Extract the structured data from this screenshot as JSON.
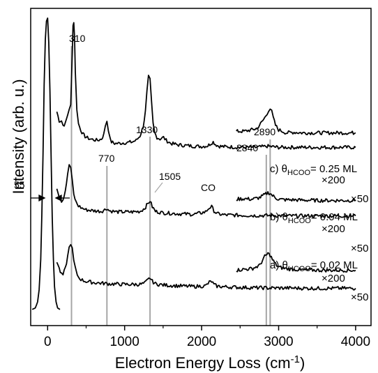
{
  "chart_data": {
    "type": "line",
    "xlabel": "Electron Energy Loss (cm",
    "xlabel_sup": "-1",
    "xlabel_close": ")",
    "ylabel": "Intensity (arb. u.)",
    "xlim": [
      -220,
      4200
    ],
    "ylim": [
      0,
      10
    ],
    "x_ticks": [
      0,
      1000,
      2000,
      3000,
      4000
    ],
    "x_tick_labels": [
      "0",
      "1000",
      "2000",
      "3000",
      "4000"
    ],
    "grid": false,
    "colors": {
      "trace": "#000000",
      "marker_line": "#a6a6a6"
    },
    "peak_markers": [
      {
        "x": 310,
        "label": "310"
      },
      {
        "x": 770,
        "label": "770"
      },
      {
        "x": 1330,
        "label": "1330"
      },
      {
        "x": 2840,
        "label": "2840"
      },
      {
        "x": 2890,
        "label": "2890"
      }
    ],
    "annotations": {
      "p1505": "1505",
      "co": "CO",
      "fwhm": "55"
    },
    "curve_labels": [
      {
        "prefix": "c) ",
        "theta": "θ",
        "sub": "HCOO",
        "suffix": "= 0.25 ML"
      },
      {
        "prefix": "b) ",
        "theta": "θ",
        "sub": "HCOO",
        "suffix": "= 0.04 ML"
      },
      {
        "prefix": "a) ",
        "theta": "θ",
        "sub": "HCOO",
        "suffix": "= 0.02 ML"
      }
    ],
    "multipliers": {
      "x200": "×200",
      "x50": "×50"
    },
    "series": [
      {
        "curve": "c",
        "scale": "×50",
        "baseline": 5.72,
        "x": [
          120,
          150,
          180,
          200,
          230,
          260,
          280,
          300,
          320,
          330,
          340,
          350,
          360,
          380,
          400,
          430,
          460,
          500,
          550,
          600,
          650,
          700,
          730,
          750,
          770,
          790,
          810,
          830,
          870,
          920,
          980,
          1040,
          1100,
          1150,
          1200,
          1240,
          1270,
          1290,
          1310,
          1330,
          1350,
          1370,
          1390,
          1420,
          1460,
          1505,
          1540,
          1600,
          1700,
          1800,
          1900,
          2000,
          2080,
          2120,
          2150,
          2180,
          2220,
          2300,
          2400,
          2500,
          2600,
          2700,
          2800,
          2850,
          2890,
          2920,
          2960,
          3000,
          3100,
          3200,
          3300,
          3500,
          3700,
          4000
        ],
        "y": [
          6.9,
          6.6,
          6.6,
          6.45,
          6.5,
          6.8,
          7.0,
          7.1,
          8.8,
          9.8,
          9.85,
          9.4,
          8.2,
          7.0,
          6.5,
          6.3,
          6.15,
          6.05,
          6.0,
          5.97,
          5.95,
          6.0,
          6.15,
          6.45,
          6.6,
          6.3,
          6.0,
          5.9,
          5.85,
          5.85,
          5.87,
          5.88,
          5.9,
          5.95,
          6.1,
          6.4,
          6.9,
          7.55,
          8.05,
          7.95,
          7.2,
          6.5,
          6.2,
          6.05,
          6.0,
          6.05,
          5.95,
          5.85,
          5.8,
          5.78,
          5.76,
          5.75,
          5.77,
          5.85,
          5.9,
          5.82,
          5.76,
          5.74,
          5.73,
          5.72,
          5.72,
          5.72,
          5.74,
          5.76,
          5.75,
          5.74,
          5.73,
          5.72,
          5.72,
          5.72,
          5.72,
          5.72,
          5.72,
          5.72
        ]
      },
      {
        "curve": "c",
        "scale": "×200",
        "baseline": 5.78,
        "x": [
          2450,
          2550,
          2650,
          2720,
          2780,
          2820,
          2850,
          2870,
          2890,
          2910,
          2930,
          2960,
          3000,
          3050,
          3100,
          3200,
          3300,
          3400,
          3500,
          3700,
          4000
        ],
        "y": [
          6.25,
          6.25,
          6.3,
          6.35,
          6.55,
          6.7,
          6.85,
          6.95,
          7.0,
          6.9,
          6.7,
          6.45,
          6.3,
          6.25,
          6.2,
          6.22,
          6.2,
          6.2,
          6.2,
          6.2,
          6.2
        ]
      },
      {
        "curve": "b",
        "scale": "×50",
        "baseline": 3.45,
        "x": [
          120,
          150,
          180,
          200,
          230,
          260,
          280,
          300,
          320,
          340,
          370,
          400,
          450,
          500,
          600,
          700,
          740,
          770,
          800,
          850,
          900,
          1000,
          1100,
          1200,
          1260,
          1300,
          1330,
          1360,
          1400,
          1500,
          1700,
          1900,
          2050,
          2100,
          2130,
          2160,
          2200,
          2300,
          2500,
          2700,
          2900,
          3100,
          3400,
          3700,
          4000
        ],
        "y": [
          4.4,
          4.1,
          3.95,
          4.0,
          4.3,
          4.8,
          5.15,
          5.05,
          4.6,
          4.15,
          3.9,
          3.78,
          3.7,
          3.65,
          3.62,
          3.6,
          3.65,
          3.7,
          3.62,
          3.6,
          3.58,
          3.58,
          3.58,
          3.6,
          3.7,
          3.85,
          3.95,
          3.75,
          3.6,
          3.55,
          3.52,
          3.5,
          3.58,
          3.72,
          3.75,
          3.62,
          3.52,
          3.48,
          3.47,
          3.46,
          3.46,
          3.45,
          3.45,
          3.45,
          3.45
        ]
      },
      {
        "curve": "b",
        "scale": "×200",
        "baseline": 3.55,
        "x": [
          2450,
          2550,
          2650,
          2750,
          2820,
          2860,
          2890,
          2920,
          2960,
          3000,
          3100,
          3200,
          3300,
          3400,
          3500,
          3700,
          4000
        ],
        "y": [
          4.0,
          4.02,
          4.0,
          4.05,
          4.15,
          4.22,
          4.2,
          4.12,
          4.05,
          4.0,
          3.98,
          3.98,
          3.97,
          3.97,
          3.96,
          3.96,
          3.96
        ]
      },
      {
        "curve": "a",
        "scale": "×50",
        "baseline": 1.05,
        "x": [
          120,
          150,
          180,
          200,
          230,
          260,
          280,
          300,
          320,
          340,
          370,
          400,
          450,
          500,
          600,
          700,
          800,
          900,
          1000,
          1100,
          1200,
          1260,
          1300,
          1330,
          1360,
          1400,
          1500,
          1700,
          1900,
          2050,
          2100,
          2130,
          2160,
          2200,
          2300,
          2500,
          2700,
          2900,
          3100,
          3400,
          3700,
          4000
        ],
        "y": [
          1.95,
          1.7,
          1.5,
          1.5,
          1.7,
          2.1,
          2.4,
          2.55,
          2.35,
          1.95,
          1.6,
          1.42,
          1.32,
          1.28,
          1.24,
          1.22,
          1.2,
          1.19,
          1.18,
          1.18,
          1.18,
          1.22,
          1.32,
          1.4,
          1.28,
          1.2,
          1.16,
          1.13,
          1.11,
          1.13,
          1.25,
          1.28,
          1.17,
          1.12,
          1.1,
          1.08,
          1.07,
          1.06,
          1.06,
          1.05,
          1.05,
          1.05
        ]
      },
      {
        "curve": "a",
        "scale": "×200",
        "baseline": 1.3,
        "x": [
          2450,
          2550,
          2650,
          2750,
          2820,
          2860,
          2890,
          2920,
          2960,
          3000,
          3100,
          3200,
          3300,
          3400,
          3500,
          3700,
          4000
        ],
        "y": [
          1.65,
          1.68,
          1.7,
          1.8,
          2.1,
          2.2,
          2.15,
          2.0,
          1.85,
          1.75,
          1.7,
          1.68,
          1.66,
          1.66,
          1.65,
          1.65,
          1.65
        ]
      },
      {
        "curve": "elastic",
        "scale": "",
        "baseline": 0.35,
        "x": [
          -200,
          -160,
          -130,
          -110,
          -90,
          -75,
          -60,
          -45,
          -30,
          -15,
          0,
          15,
          30,
          45,
          60,
          75,
          90,
          110,
          130,
          160
        ],
        "y": [
          0.35,
          0.4,
          0.6,
          1.0,
          2.0,
          3.5,
          5.5,
          7.8,
          9.3,
          9.9,
          10.0,
          9.2,
          7.6,
          5.4,
          3.4,
          2.0,
          1.1,
          0.6,
          0.4,
          0.35
        ]
      }
    ]
  }
}
